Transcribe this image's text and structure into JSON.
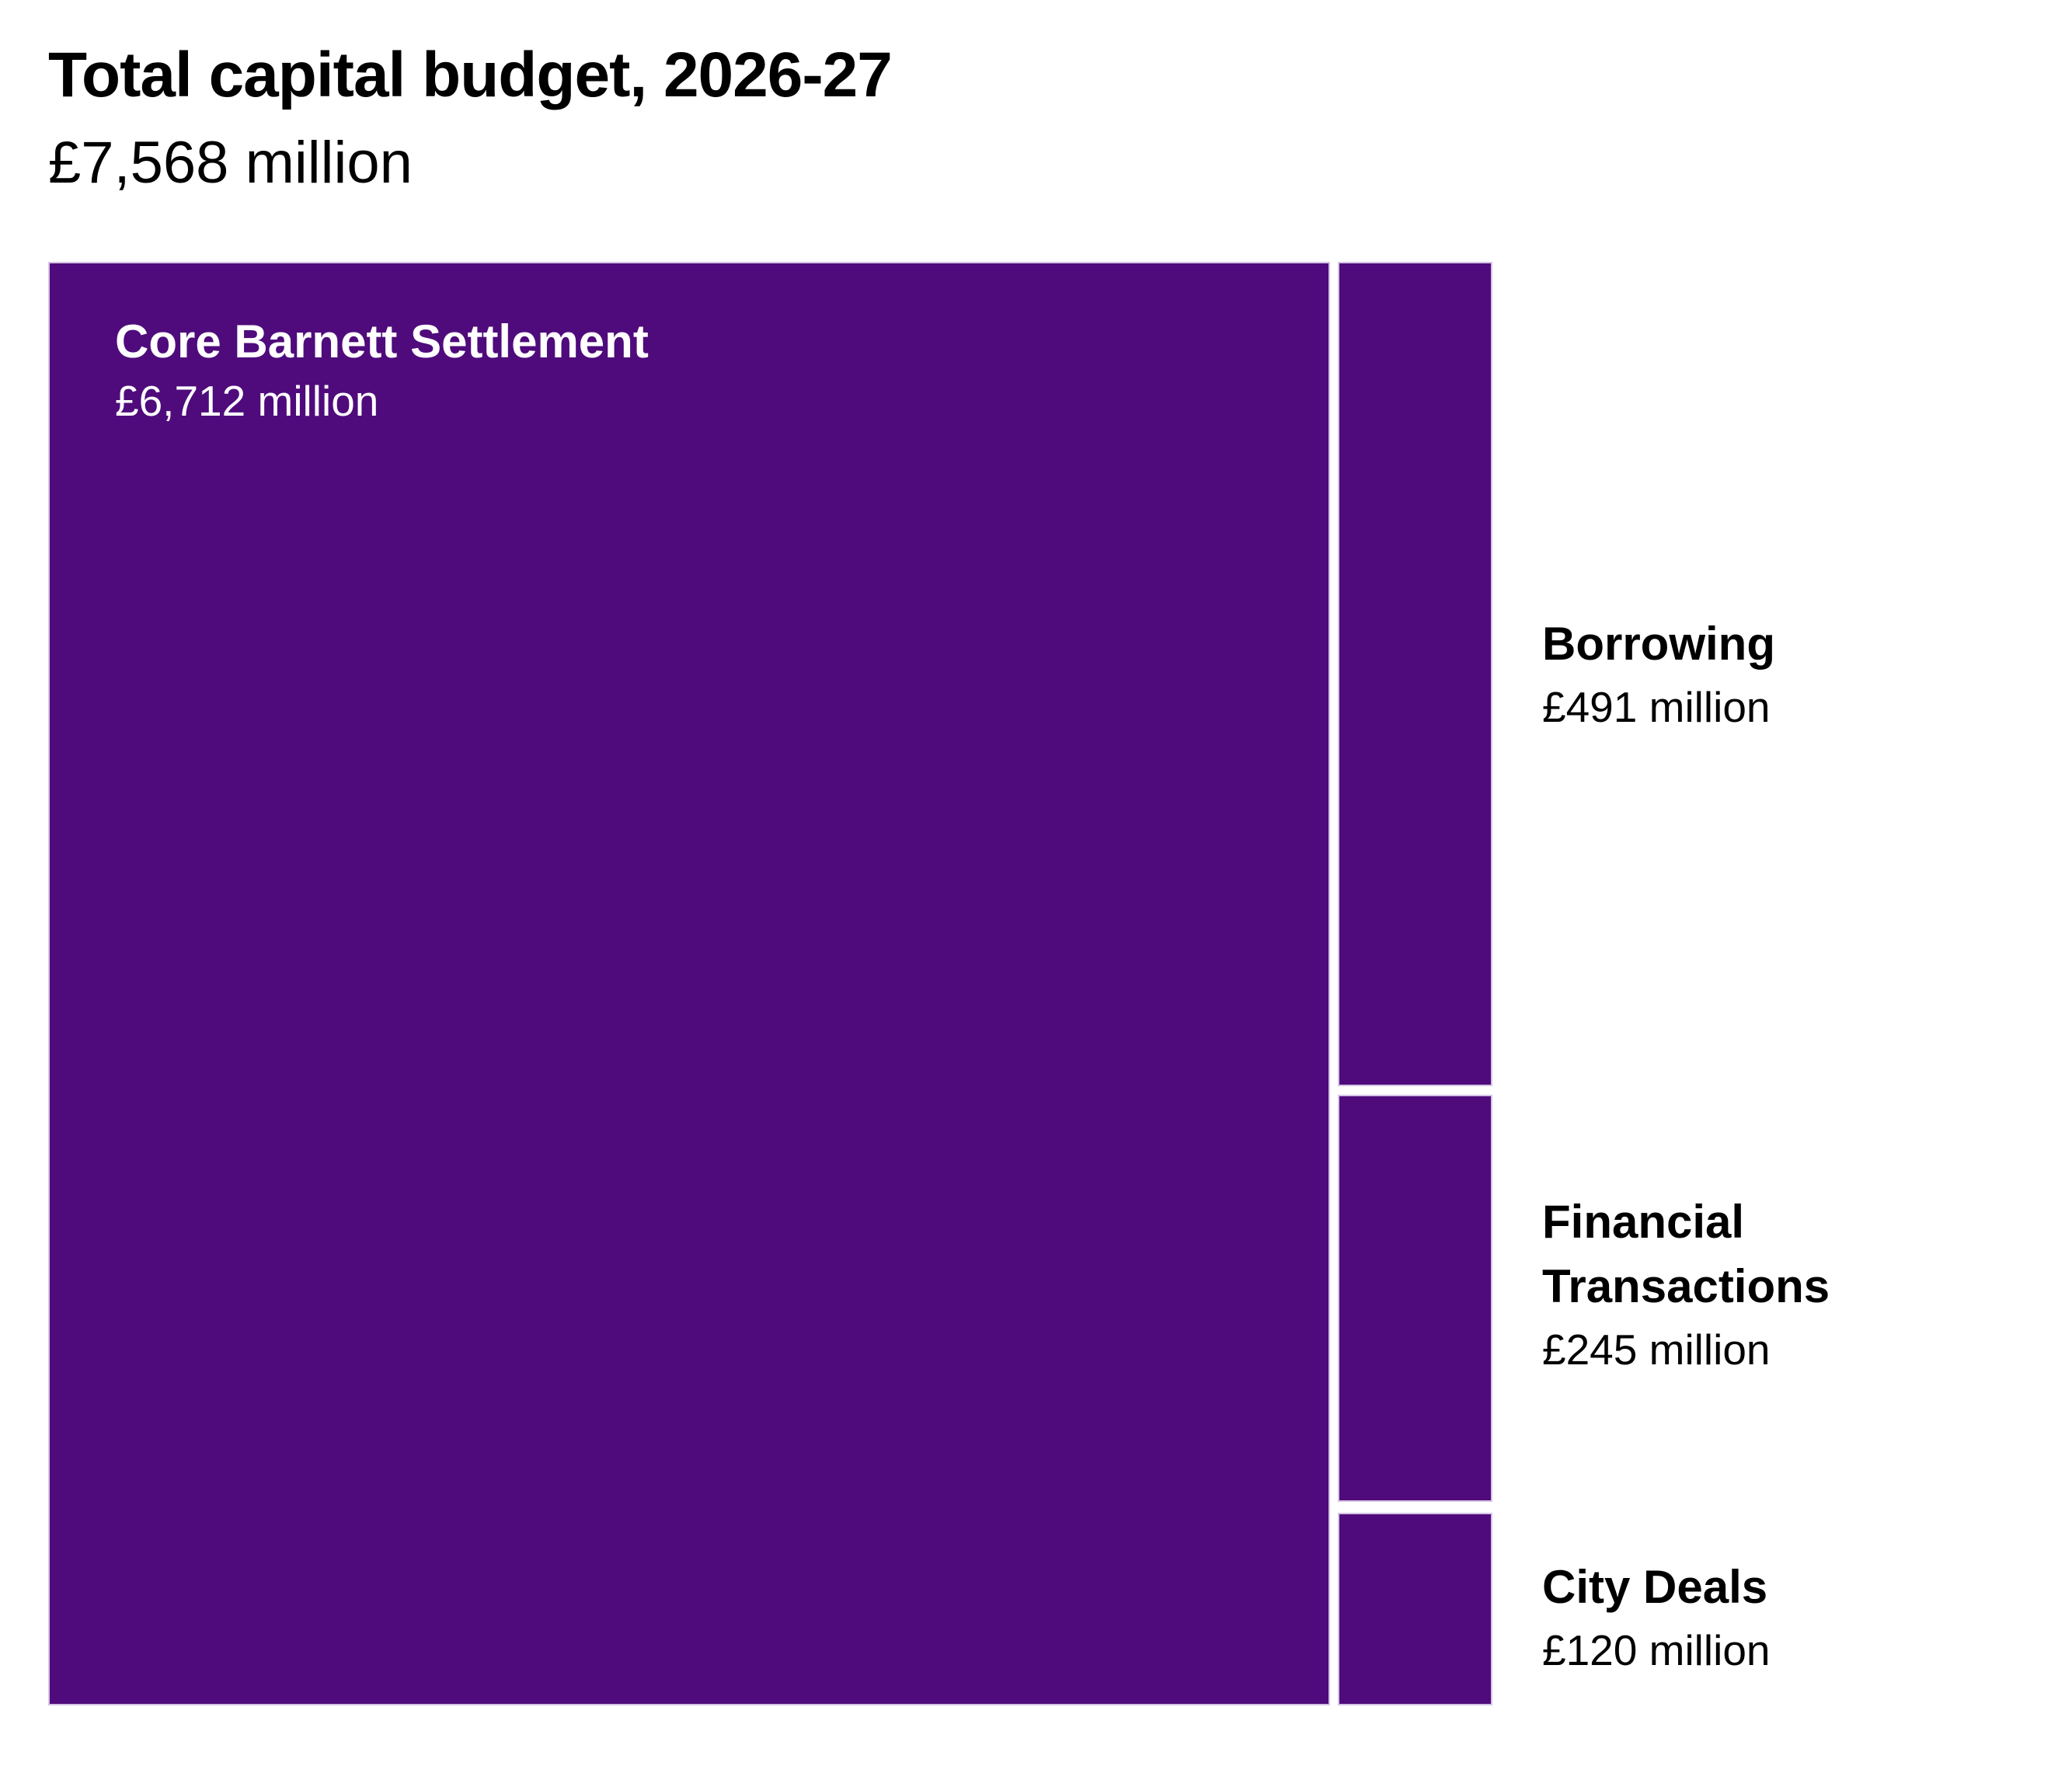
{
  "title": "Total capital budget, 2026-27",
  "subtitle": "£7,568 million",
  "chart_data": {
    "type": "treemap",
    "title": "Total capital budget, 2026-27",
    "total_label": "£7,568 million",
    "total_value_millions": 7568,
    "unit": "£ million",
    "segments": [
      {
        "name": "Core Barnett Settlement",
        "value": 6712,
        "value_label": "£6,712 million",
        "label_position": "inside",
        "label_color": "#ffffff"
      },
      {
        "name": "Borrowing",
        "value": 491,
        "value_label": "£491 million",
        "label_position": "outside-right",
        "label_color": "#000000"
      },
      {
        "name": "Financial Transactions",
        "value": 245,
        "value_label": "£245 million",
        "label_position": "outside-right",
        "label_color": "#000000"
      },
      {
        "name": "City Deals",
        "value": 120,
        "value_label": "£120 million",
        "label_position": "outside-right",
        "label_color": "#000000"
      }
    ],
    "colors": {
      "segment_fill": "#4F0B7B",
      "segment_border": "#d5c4e4",
      "background": "#ffffff",
      "title_text": "#000000",
      "inside_label_text": "#ffffff",
      "outside_label_text": "#000000"
    },
    "layout": {
      "legend": "none",
      "grid": false,
      "orientation": "largest-left, remainder stacked in right column"
    }
  }
}
